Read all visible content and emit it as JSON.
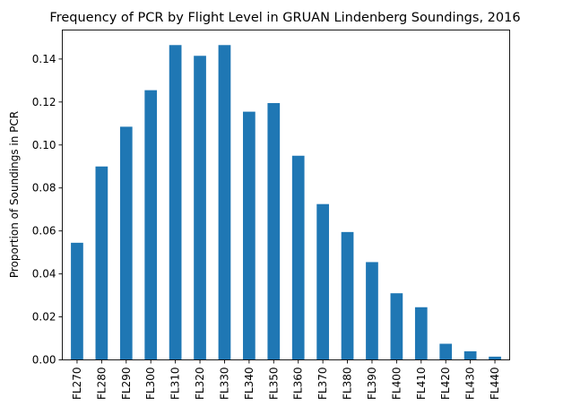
{
  "chart_data": {
    "type": "bar",
    "title": "Frequency of PCR by Flight Level in GRUAN Lindenberg Soundings, 2016",
    "xlabel": "",
    "ylabel": "Proportion of Soundings in PCR",
    "categories": [
      "FL270",
      "FL280",
      "FL290",
      "FL300",
      "FL310",
      "FL320",
      "FL330",
      "FL340",
      "FL350",
      "FL360",
      "FL370",
      "FL380",
      "FL390",
      "FL400",
      "FL410",
      "FL420",
      "FL430",
      "FL440"
    ],
    "values": [
      0.0545,
      0.09,
      0.1085,
      0.1255,
      0.1465,
      0.1415,
      0.1465,
      0.1155,
      0.1195,
      0.095,
      0.0725,
      0.0595,
      0.0455,
      0.031,
      0.0245,
      0.0075,
      0.004,
      0.0015
    ],
    "ylim": [
      0,
      0.1535
    ],
    "yticks": [
      "0.00",
      "0.02",
      "0.04",
      "0.06",
      "0.08",
      "0.10",
      "0.12",
      "0.14"
    ],
    "grid": false,
    "legend": "none",
    "bar_color": "#1f77b4"
  }
}
